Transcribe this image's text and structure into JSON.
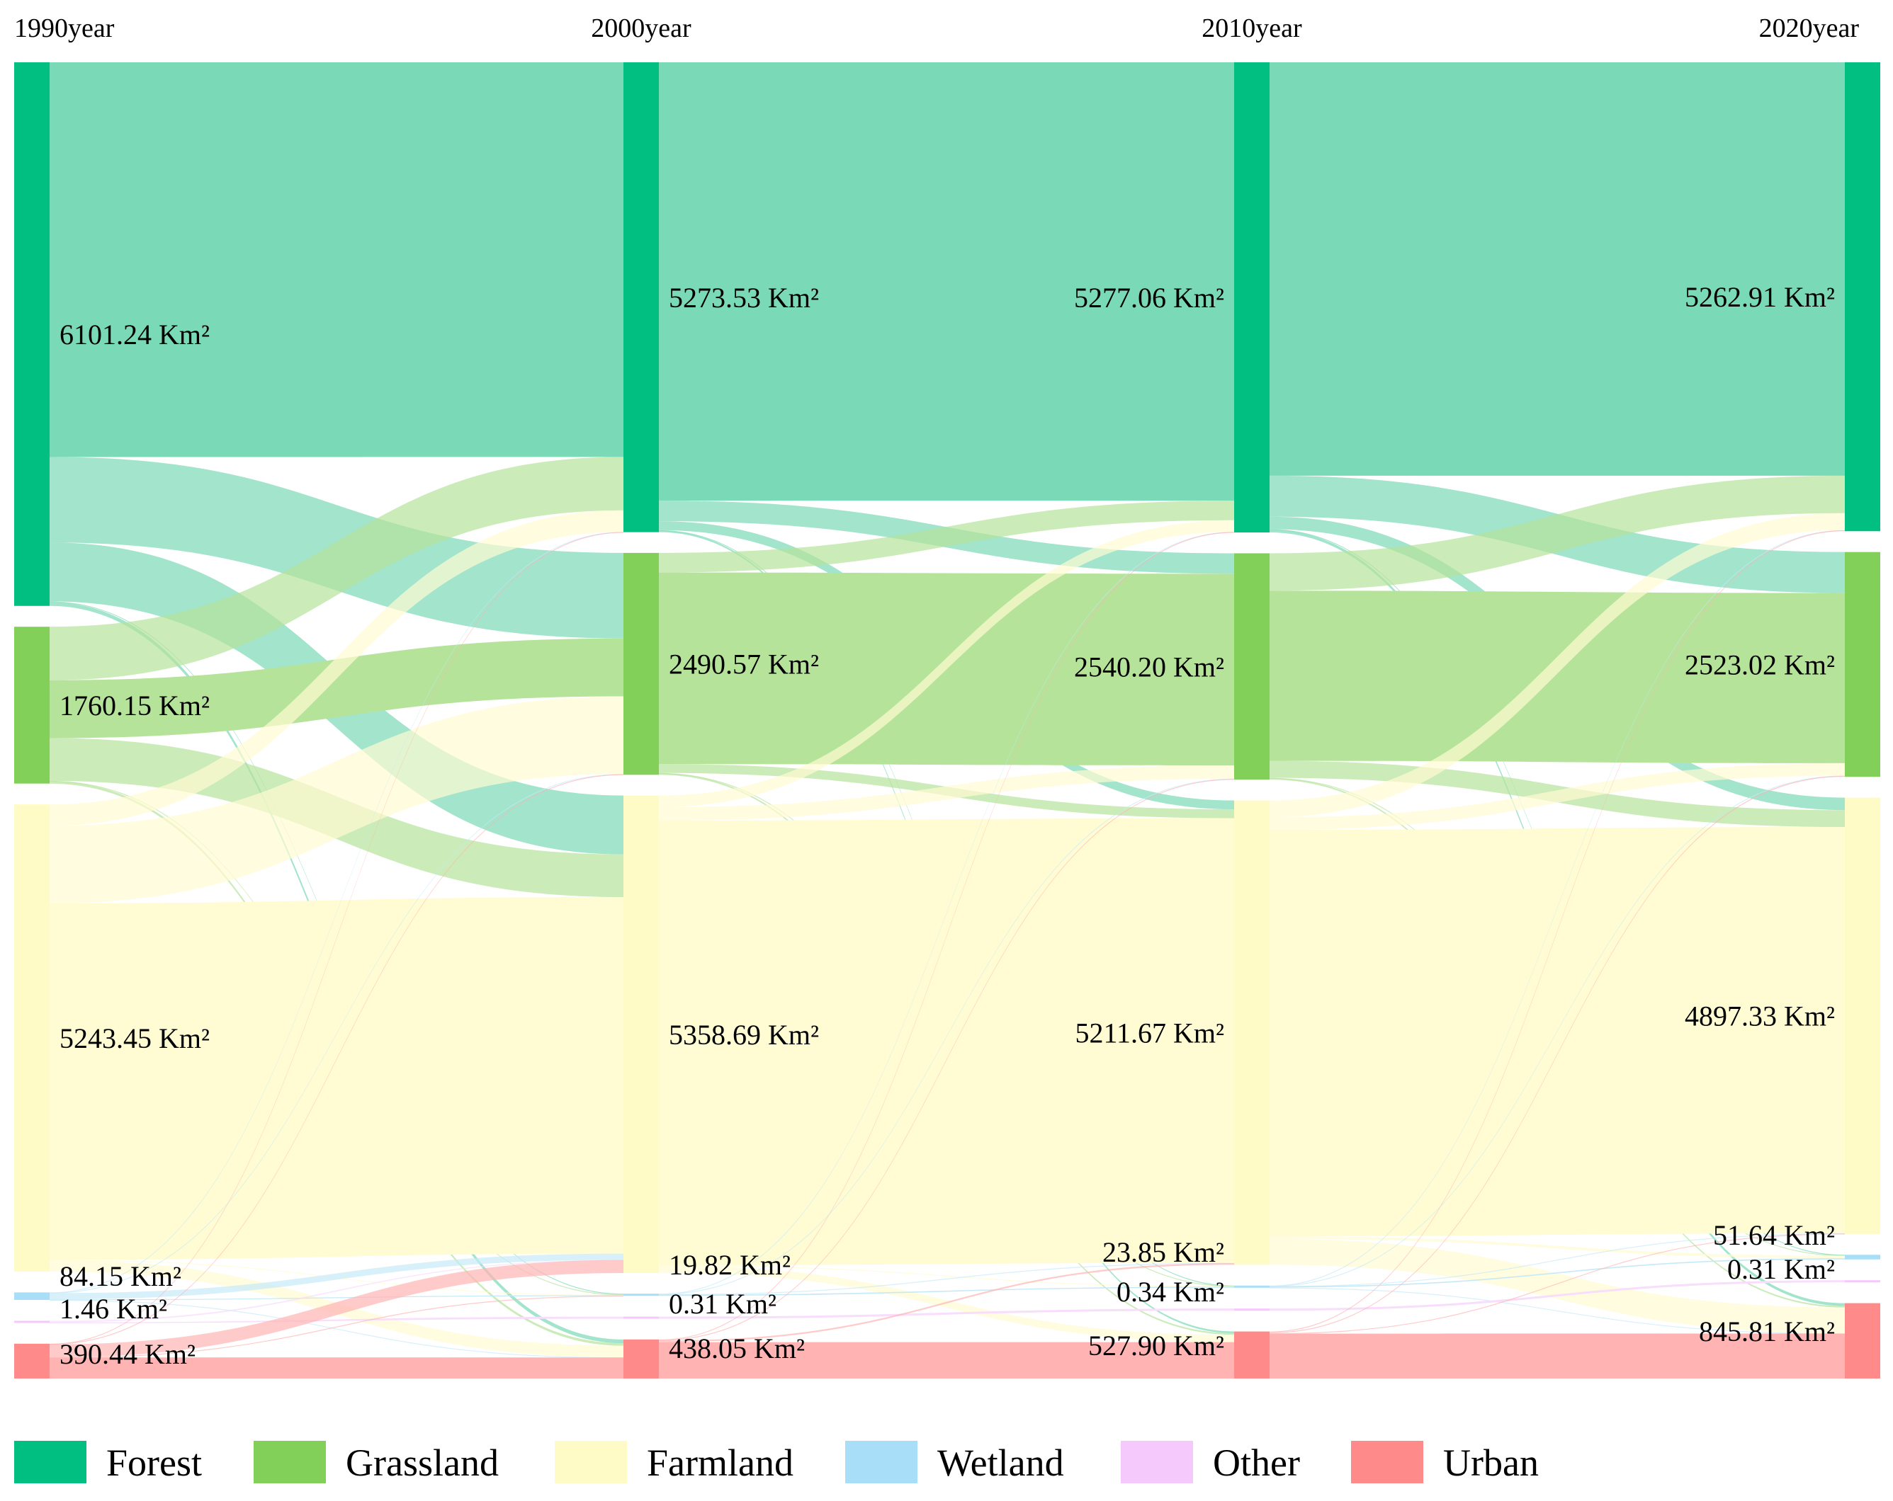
{
  "chart_data": {
    "type": "sankey",
    "unit": "Km²",
    "years": [
      "1990year",
      "2000year",
      "2010year",
      "2020year"
    ],
    "categories": [
      {
        "key": "forest",
        "name": "Forest",
        "color": "#00BF80",
        "flow_color": "#7AD9B6"
      },
      {
        "key": "grassland",
        "name": "Grassland",
        "color": "#82CF5A",
        "flow_color": "#B5E39A"
      },
      {
        "key": "farmland",
        "name": "Farmland",
        "color": "#FFFBC6",
        "flow_color": "#FFFBD2"
      },
      {
        "key": "wetland",
        "name": "Wetland",
        "color": "#A8DEF7",
        "flow_color": "#C6E9F8"
      },
      {
        "key": "other",
        "name": "Other",
        "color": "#F5C9FC",
        "flow_color": "#F8DDFC"
      },
      {
        "key": "urban",
        "name": "Urban",
        "color": "#FF8A8A",
        "flow_color": "#FFB3B3"
      }
    ],
    "nodes": [
      {
        "year": "1990year",
        "forest": 6101.24,
        "grassland": 1760.15,
        "farmland": 5243.45,
        "wetland": 84.15,
        "other": 1.46,
        "urban": 390.44
      },
      {
        "year": "2000year",
        "forest": 5273.53,
        "grassland": 2490.57,
        "farmland": 5358.69,
        "wetland": 19.82,
        "other": 0.31,
        "urban": 438.05
      },
      {
        "year": "2010year",
        "forest": 5277.06,
        "grassland": 2540.2,
        "farmland": 5211.67,
        "wetland": 23.85,
        "other": 0.34,
        "urban": 527.9
      },
      {
        "year": "2020year",
        "forest": 5262.91,
        "grassland": 2523.02,
        "farmland": 4897.33,
        "wetland": 51.64,
        "other": 0.31,
        "urban": 845.81
      }
    ],
    "node_labels": [
      {
        "forest": "6101.24 Km²",
        "grassland": "1760.15 Km²",
        "farmland": "5243.45 Km²",
        "wetland": "84.15 Km²",
        "other": "1.46 Km²",
        "urban": "390.44 Km²"
      },
      {
        "forest": "5273.53 Km²",
        "grassland": "2490.57 Km²",
        "farmland": "5358.69 Km²",
        "wetland": "19.82 Km²",
        "other": "0.31 Km²",
        "urban": "438.05 Km²"
      },
      {
        "forest": "5277.06 Km²",
        "grassland": "2540.20 Km²",
        "farmland": "5211.67 Km²",
        "wetland": "23.85 Km²",
        "other": "0.34 Km²",
        "urban": "527.90 Km²"
      },
      {
        "forest": "5262.91 Km²",
        "grassland": "2523.02 Km²",
        "farmland": "4897.33 Km²",
        "wetland": "51.64 Km²",
        "other": "0.31 Km²",
        "urban": "845.81 Km²"
      }
    ],
    "flows": [
      [
        {
          "from": "forest",
          "to": "forest",
          "value": 4430
        },
        {
          "from": "forest",
          "to": "grassland",
          "value": 960
        },
        {
          "from": "forest",
          "to": "farmland",
          "value": 660
        },
        {
          "from": "forest",
          "to": "wetland",
          "value": 8
        },
        {
          "from": "forest",
          "to": "urban",
          "value": 43
        },
        {
          "from": "grassland",
          "to": "forest",
          "value": 600
        },
        {
          "from": "grassland",
          "to": "grassland",
          "value": 650
        },
        {
          "from": "grassland",
          "to": "farmland",
          "value": 480
        },
        {
          "from": "grassland",
          "to": "wetland",
          "value": 3
        },
        {
          "from": "grassland",
          "to": "urban",
          "value": 27
        },
        {
          "from": "farmland",
          "to": "forest",
          "value": 240
        },
        {
          "from": "farmland",
          "to": "grassland",
          "value": 870
        },
        {
          "from": "farmland",
          "to": "farmland",
          "value": 4000
        },
        {
          "from": "farmland",
          "to": "wetland",
          "value": 3
        },
        {
          "from": "farmland",
          "to": "urban",
          "value": 130
        },
        {
          "from": "wetland",
          "to": "forest",
          "value": 3
        },
        {
          "from": "wetland",
          "to": "grassland",
          "value": 5
        },
        {
          "from": "wetland",
          "to": "farmland",
          "value": 70
        },
        {
          "from": "wetland",
          "to": "wetland",
          "value": 5
        },
        {
          "from": "wetland",
          "to": "urban",
          "value": 1
        },
        {
          "from": "other",
          "to": "farmland",
          "value": 1
        },
        {
          "from": "other",
          "to": "other",
          "value": 0.31
        },
        {
          "from": "urban",
          "to": "forest",
          "value": 1
        },
        {
          "from": "urban",
          "to": "grassland",
          "value": 6
        },
        {
          "from": "urban",
          "to": "farmland",
          "value": 146
        },
        {
          "from": "urban",
          "to": "wetland",
          "value": 1
        },
        {
          "from": "urban",
          "to": "urban",
          "value": 236
        }
      ],
      [
        {
          "from": "forest",
          "to": "forest",
          "value": 4920
        },
        {
          "from": "forest",
          "to": "grassland",
          "value": 230
        },
        {
          "from": "forest",
          "to": "farmland",
          "value": 100
        },
        {
          "from": "forest",
          "to": "wetland",
          "value": 4
        },
        {
          "from": "forest",
          "to": "urban",
          "value": 19
        },
        {
          "from": "grassland",
          "to": "forest",
          "value": 220
        },
        {
          "from": "grassland",
          "to": "grassland",
          "value": 2150
        },
        {
          "from": "grassland",
          "to": "farmland",
          "value": 100
        },
        {
          "from": "grassland",
          "to": "wetland",
          "value": 2
        },
        {
          "from": "grassland",
          "to": "urban",
          "value": 18
        },
        {
          "from": "farmland",
          "to": "forest",
          "value": 130
        },
        {
          "from": "farmland",
          "to": "grassland",
          "value": 150
        },
        {
          "from": "farmland",
          "to": "farmland",
          "value": 4990
        },
        {
          "from": "farmland",
          "to": "wetland",
          "value": 6
        },
        {
          "from": "farmland",
          "to": "urban",
          "value": 82
        },
        {
          "from": "wetland",
          "to": "forest",
          "value": 2
        },
        {
          "from": "wetland",
          "to": "grassland",
          "value": 3
        },
        {
          "from": "wetland",
          "to": "farmland",
          "value": 3
        },
        {
          "from": "wetland",
          "to": "wetland",
          "value": 11
        },
        {
          "from": "other",
          "to": "other",
          "value": 0.31
        },
        {
          "from": "urban",
          "to": "forest",
          "value": 5
        },
        {
          "from": "urban",
          "to": "grassland",
          "value": 7
        },
        {
          "from": "urban",
          "to": "farmland",
          "value": 18
        },
        {
          "from": "urban",
          "to": "urban",
          "value": 408
        }
      ],
      [
        {
          "from": "forest",
          "to": "forest",
          "value": 4640
        },
        {
          "from": "forest",
          "to": "grassland",
          "value": 460
        },
        {
          "from": "forest",
          "to": "farmland",
          "value": 140
        },
        {
          "from": "forest",
          "to": "wetland",
          "value": 5
        },
        {
          "from": "forest",
          "to": "urban",
          "value": 32
        },
        {
          "from": "grassland",
          "to": "forest",
          "value": 420
        },
        {
          "from": "grassland",
          "to": "grassland",
          "value": 1910
        },
        {
          "from": "grassland",
          "to": "farmland",
          "value": 190
        },
        {
          "from": "grassland",
          "to": "wetland",
          "value": 3
        },
        {
          "from": "grassland",
          "to": "urban",
          "value": 17
        },
        {
          "from": "farmland",
          "to": "forest",
          "value": 190
        },
        {
          "from": "farmland",
          "to": "grassland",
          "value": 140
        },
        {
          "from": "farmland",
          "to": "farmland",
          "value": 4560
        },
        {
          "from": "farmland",
          "to": "wetland",
          "value": 30
        },
        {
          "from": "farmland",
          "to": "urban",
          "value": 290
        },
        {
          "from": "wetland",
          "to": "forest",
          "value": 3
        },
        {
          "from": "wetland",
          "to": "grassland",
          "value": 3
        },
        {
          "from": "wetland",
          "to": "farmland",
          "value": 3
        },
        {
          "from": "wetland",
          "to": "wetland",
          "value": 13
        },
        {
          "from": "wetland",
          "to": "urban",
          "value": 2
        },
        {
          "from": "other",
          "to": "other",
          "value": 0.31
        },
        {
          "from": "urban",
          "to": "forest",
          "value": 10
        },
        {
          "from": "urban",
          "to": "grassland",
          "value": 10
        },
        {
          "from": "urban",
          "to": "farmland",
          "value": 4
        },
        {
          "from": "urban",
          "to": "urban",
          "value": 504
        }
      ]
    ],
    "legend": {
      "position": "bottom"
    }
  }
}
